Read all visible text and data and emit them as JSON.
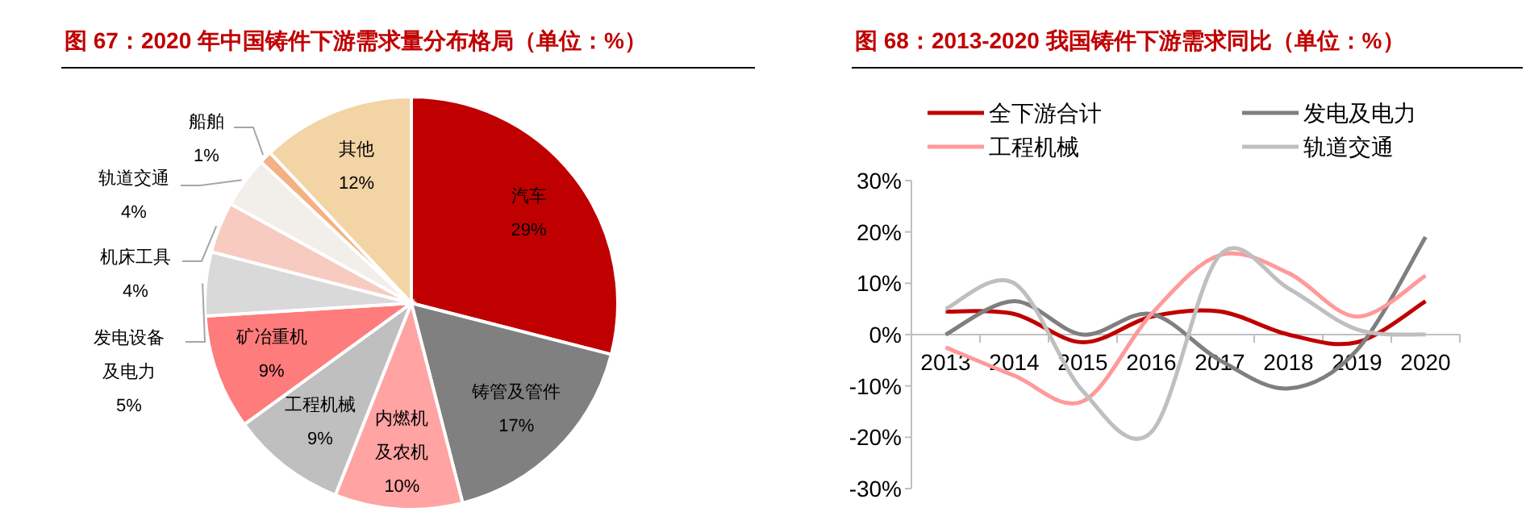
{
  "chart_data": [
    {
      "type": "pie",
      "title": "图 67：2020 年中国铸件下游需求量分布格局（单位：%）",
      "categories": [
        "汽车",
        "铸管及管件",
        "内燃机及农机",
        "工程机械",
        "矿冶重机",
        "发电设备及电力",
        "机床工具",
        "轨道交通",
        "船舶",
        "其他"
      ],
      "values": [
        29,
        17,
        10,
        9,
        9,
        5,
        4,
        4,
        1,
        12
      ],
      "colors": [
        "#c00000",
        "#808080",
        "#ffa3a3",
        "#bfbfbf",
        "#ff7c7c",
        "#d9d9d9",
        "#f8cbc0",
        "#f2eee9",
        "#f4b183",
        "#f2d4a5"
      ],
      "value_labels": [
        "29%",
        "17%",
        "10%",
        "9%",
        "9%",
        "5%",
        "4%",
        "4%",
        "1%",
        "12%"
      ]
    },
    {
      "type": "line",
      "title": "图 68：2013-2020 我国铸件下游需求同比（单位：%）",
      "categories": [
        "2013",
        "2014",
        "2015",
        "2016",
        "2017",
        "2018",
        "2019",
        "2020"
      ],
      "series": [
        {
          "name": "全下游合计",
          "color": "#c00000",
          "values": [
            4.5,
            4,
            -1.5,
            3.5,
            4.5,
            0,
            -1.5,
            6.5
          ]
        },
        {
          "name": "发电及电力",
          "color": "#7f7f7f",
          "values": [
            0,
            6.5,
            0,
            4,
            -5,
            -10.5,
            -3,
            19
          ]
        },
        {
          "name": "工程机械",
          "color": "#ff9a9a",
          "values": [
            -2.5,
            -8,
            -13,
            4,
            15.5,
            12,
            3.5,
            11.5
          ]
        },
        {
          "name": "轨道交通",
          "color": "#bfbfbf",
          "values": [
            5,
            10,
            -11,
            -19,
            15.5,
            9,
            1,
            0
          ]
        }
      ],
      "ylim": [
        -30,
        30
      ],
      "yticks": [
        {
          "value": -30,
          "label": "-30%"
        },
        {
          "value": -20,
          "label": "-20%"
        },
        {
          "value": -10,
          "label": "-10%"
        },
        {
          "value": 0,
          "label": "0%"
        },
        {
          "value": 10,
          "label": "10%"
        },
        {
          "value": 20,
          "label": "20%"
        },
        {
          "value": 30,
          "label": "30%"
        }
      ],
      "legend": "top",
      "grid": false
    }
  ]
}
